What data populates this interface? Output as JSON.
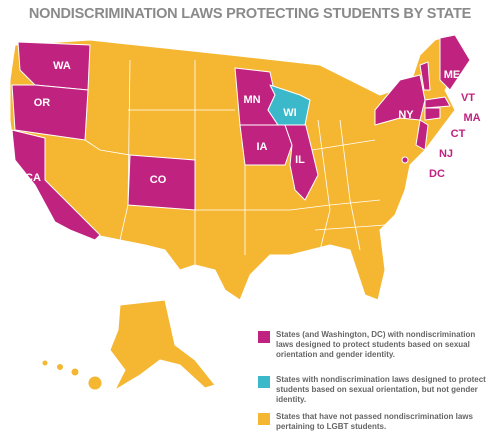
{
  "title": "NONDISCRIMINATION LAWS PROTECTING STUDENTS BY STATE",
  "states": [
    "WA",
    "OR",
    "CA",
    "CO",
    "MN",
    "IA",
    "IL",
    "WI",
    "NY",
    "ME",
    "VT",
    "MA",
    "CT",
    "NJ",
    "DC"
  ],
  "legend": [
    {
      "color": "#c0237f",
      "text": "States (and Washington, DC) with nondiscrimination laws designed to protect students based on sexual orientation and gender identity."
    },
    {
      "color": "#3bb8c9",
      "text": "States with nondiscrimination laws designed to protect students based on sexual orientation, but not gender identity."
    },
    {
      "color": "#f5b731",
      "text": "States that have not passed nondiscrimination laws pertaining to LGBT students."
    }
  ]
}
